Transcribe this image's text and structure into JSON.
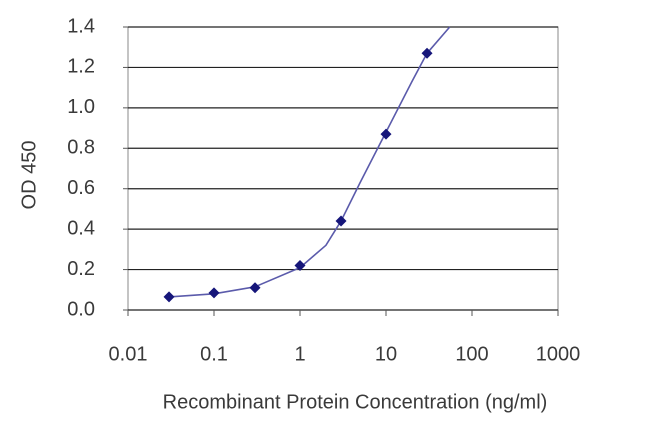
{
  "chart_data": {
    "type": "scatter",
    "y_label": "OD 450",
    "x_label": "Recombinant Protein Concentration (ng/ml)",
    "x_scale": "log",
    "xlim": [
      0.01,
      1000
    ],
    "xticks": [
      0.01,
      0.1,
      1,
      10,
      100,
      1000
    ],
    "ylim": [
      0,
      1.4
    ],
    "yticks": [
      {
        "value": 0,
        "label": "0.0"
      },
      0.2,
      0.4,
      0.6,
      0.8,
      {
        "value": 1,
        "label": "1.0"
      },
      1.2,
      1.4
    ],
    "grid": true,
    "series": [
      {
        "style": "markers",
        "color": "#16167a",
        "x": [
          0.03,
          0.1,
          0.3,
          1,
          3,
          10,
          30
        ],
        "values": [
          0.065,
          0.085,
          0.11,
          0.22,
          0.44,
          0.87,
          1.27
        ]
      },
      {
        "style": "line",
        "color": "#5b5bab",
        "x": [
          0.03,
          0.1,
          0.3,
          1,
          2,
          3,
          5,
          10,
          20,
          30,
          55
        ],
        "values": [
          0.065,
          0.08,
          0.115,
          0.21,
          0.32,
          0.44,
          0.63,
          0.88,
          1.13,
          1.27,
          1.4
        ]
      }
    ]
  }
}
